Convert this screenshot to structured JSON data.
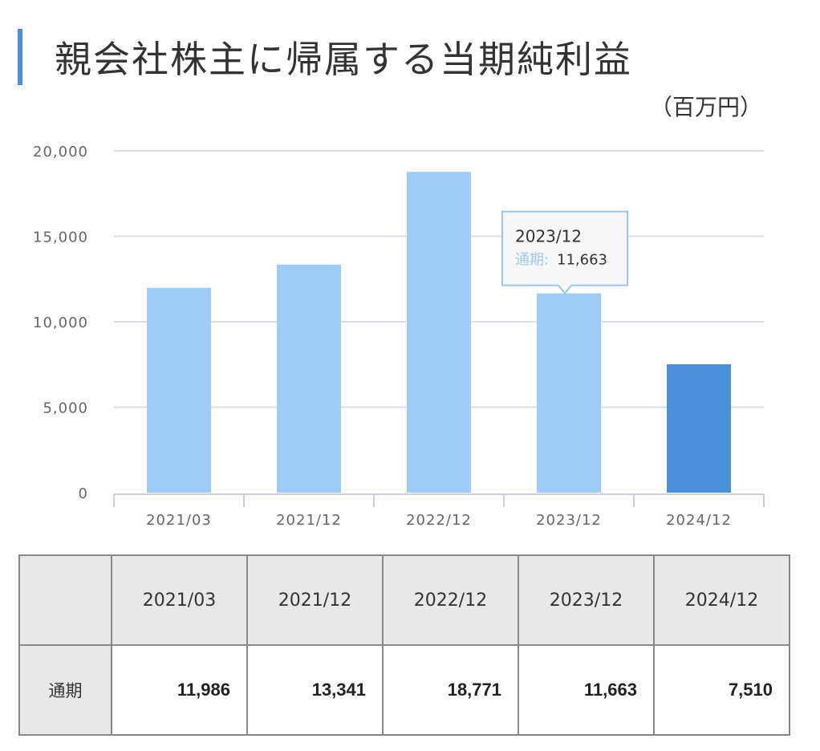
{
  "header": {
    "title": "親会社株主に帰属する当期純利益",
    "unit": "（百万円）"
  },
  "chart_data": {
    "type": "bar",
    "categories": [
      "2021/03",
      "2021/12",
      "2022/12",
      "2023/12",
      "2024/12"
    ],
    "series": [
      {
        "name": "通期",
        "values": [
          11986,
          13341,
          18771,
          11663,
          7510
        ]
      }
    ],
    "ylim": [
      0,
      20000
    ],
    "yticks": [
      0,
      5000,
      10000,
      15000,
      20000
    ],
    "ytick_labels": [
      "0",
      "5,000",
      "10,000",
      "15,000",
      "20,000"
    ],
    "grid": true,
    "colors": {
      "bar": "#9fcbf8",
      "highlight_bar": "#4a90d9",
      "grid": "#d9dde3",
      "axis": "#c8d0dc"
    },
    "highlight_index": 4,
    "tooltip": {
      "category_index": 3,
      "title": "2023/12",
      "key": "通期:",
      "value": "11,663"
    }
  },
  "table": {
    "columns": [
      "2021/03",
      "2021/12",
      "2022/12",
      "2023/12",
      "2024/12"
    ],
    "row_label": "通期",
    "values": [
      "11,986",
      "13,341",
      "18,771",
      "11,663",
      "7,510"
    ]
  }
}
